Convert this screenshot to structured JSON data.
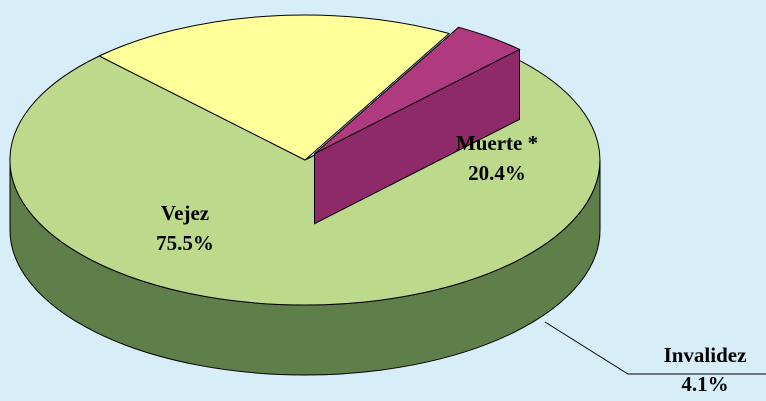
{
  "chart_data": {
    "type": "pie",
    "categories": [
      "Vejez",
      "Muerte *",
      "Invalidez"
    ],
    "values": [
      75.5,
      20.4,
      4.1
    ],
    "value_labels": [
      "75.5%",
      "20.4%",
      "4.1%"
    ],
    "colors": [
      "#bcd98c",
      "#ffff99",
      "#b03a80"
    ],
    "side_colors": [
      "#5f7f4a",
      "#a8a85a",
      "#c576bd"
    ]
  }
}
